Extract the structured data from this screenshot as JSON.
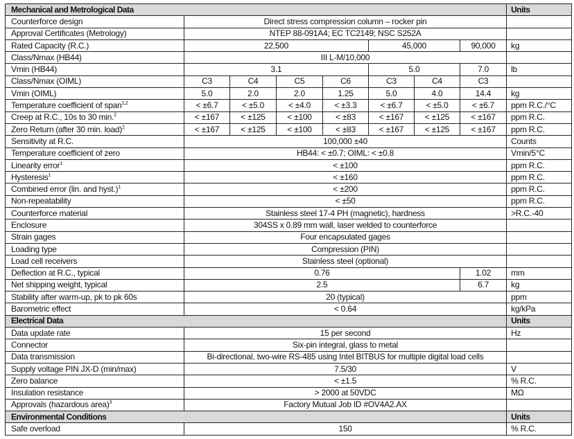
{
  "sections": [
    {
      "title": "Mechanical and Metrological Data",
      "units_label": "Units",
      "rows": [
        {
          "label": "Counterforce design",
          "cells": [
            "Direct stress compression column – rocker pin"
          ],
          "unit": ""
        },
        {
          "label": "Approval Certificates (Metrology)",
          "cells": [
            "NTEP 88-091A4; EC TC2149; NSC S252A"
          ],
          "unit": ""
        },
        {
          "label": "Rated Capacity (R.C.)",
          "cells": [
            "22,500",
            "45,000",
            "90,000"
          ],
          "unit": "kg"
        },
        {
          "label": "Class/Nmax (HB44)",
          "cells": [
            "III L-M/10,000"
          ],
          "unit": ""
        },
        {
          "label": "Vmin (HB44)",
          "cells": [
            "3.1",
            "5.0",
            "7.0"
          ],
          "unit": "lb"
        },
        {
          "label": "Class/Nmax (OIML)",
          "cells": [
            "C3",
            "C4",
            "C5",
            "C6",
            "C3",
            "C4",
            "C3"
          ],
          "unit": ""
        },
        {
          "label": "Vmin (OIML)",
          "cells": [
            "5.0",
            "2.0",
            "2.0",
            "1.25",
            "5.0",
            "4.0",
            "14.4"
          ],
          "unit": "kg"
        },
        {
          "label": "Temperature coefficient of span",
          "sup": "1,2",
          "cells": [
            "< ±6.7",
            "< ±5.0",
            "< ±4.0",
            "< ±3.3",
            "< ±6.7",
            "< ±5.0",
            "< ±6.7"
          ],
          "unit": "ppm R.C./°C"
        },
        {
          "label": "Creep at R.C., 10s to 30 min.",
          "sup": "2",
          "cells": [
            "< ±167",
            "< ±125",
            "< ±100",
            "< ±83",
            "< ±167",
            "< ±125",
            "< ±167"
          ],
          "unit": "ppm R.C."
        },
        {
          "label": "Zero Return (after 30 min. load)",
          "sup": "2",
          "cells": [
            "< ±167",
            "< ±125",
            "< ±100",
            "< ±83",
            "< ±167",
            "< ±125",
            "< ±167"
          ],
          "unit": "ppm R.C."
        },
        {
          "label": "Sensitivity at R.C.",
          "cells": [
            "100,000 ±40"
          ],
          "unit": "Counts"
        },
        {
          "label": "Temperature coefficient of zero",
          "cells": [
            "HB44: < ±0.7; OIML: < ±0.8"
          ],
          "unit": "Vmin/5°C"
        },
        {
          "label": "Linearity error",
          "sup": "1",
          "cells": [
            "< ±100"
          ],
          "unit": "ppm R.C."
        },
        {
          "label": "Hysteresis",
          "sup": "1",
          "cells": [
            "< ±160"
          ],
          "unit": "ppm R.C."
        },
        {
          "label": "Combined error (lin. and hyst.)",
          "sup": "1",
          "cells": [
            "< ±200"
          ],
          "unit": "ppm R.C."
        },
        {
          "label": "Non-repeatability",
          "cells": [
            "< ±50"
          ],
          "unit": "ppm R.C."
        },
        {
          "label": "Counterforce material",
          "cells": [
            "Stainless steel 17-4 PH (magnetic), hardness"
          ],
          "unit": ">R.C.-40"
        },
        {
          "label": "Enclosure",
          "cells": [
            "304SS x 0.89 mm wall, laser welded to counterforce"
          ],
          "unit": ""
        },
        {
          "label": "Strain gages",
          "cells": [
            "Four encapsulated gages"
          ],
          "unit": ""
        },
        {
          "label": "Loading type",
          "cells": [
            "Compression (PIN)"
          ],
          "unit": ""
        },
        {
          "label": "Load cell receivers",
          "cells": [
            "Stainless steel (optional)"
          ],
          "unit": ""
        },
        {
          "label": "Deflection at R.C., typical",
          "cells": [
            "0.76",
            "1.02"
          ],
          "unit": "mm"
        },
        {
          "label": "Net shipping weight, typical",
          "cells": [
            "2.5",
            "6.7"
          ],
          "unit": "kg"
        },
        {
          "label": "Stability after warm-up, pk to pk 60s",
          "cells": [
            "20 (typical)"
          ],
          "unit": "ppm"
        },
        {
          "label": "Barometric effect",
          "cells": [
            "< 0.64"
          ],
          "unit": "kg/kPa"
        }
      ]
    },
    {
      "title": "Electrical Data",
      "units_label": "Units",
      "rows": [
        {
          "label": "Data update rate",
          "cells": [
            "15 per second"
          ],
          "unit": "Hz"
        },
        {
          "label": "Connector",
          "cells": [
            "Six-pin integral, glass to metal"
          ],
          "unit": ""
        },
        {
          "label": "Data transmission",
          "cells": [
            "Bi-directional, two-wire RS-485 using Intel BITBUS for multiple digital load cells"
          ],
          "unit": ""
        },
        {
          "label": "Supply voltage PIN JX-D (min/max)",
          "cells": [
            "7.5/30"
          ],
          "unit": "V"
        },
        {
          "label": "Zero balance",
          "cells": [
            "< ±1.5"
          ],
          "unit": "% R.C."
        },
        {
          "label": "Insulation resistance",
          "cells": [
            "> 2000 at 50VDC"
          ],
          "unit": "MΩ"
        },
        {
          "label": "Approvals (hazardous area)",
          "sup": "3",
          "cells": [
            "Factory Mutual Job ID #OV4A2.AX"
          ],
          "unit": ""
        }
      ]
    },
    {
      "title": "Environmental Conditions",
      "units_label": "Units",
      "rows": [
        {
          "label": "Safe overload",
          "cells": [
            "150"
          ],
          "unit": "% R.C."
        }
      ]
    }
  ]
}
